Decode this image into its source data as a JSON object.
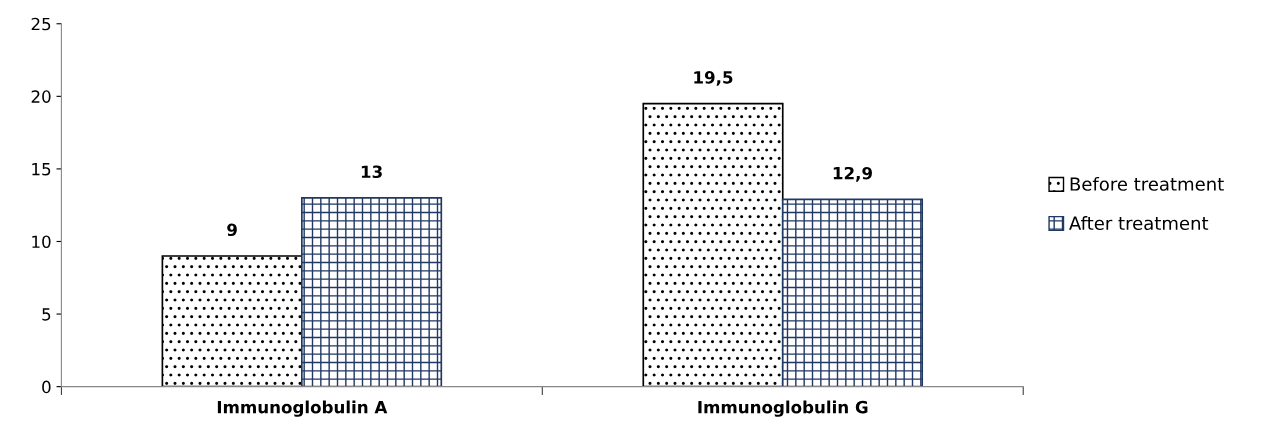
{
  "chart_data": {
    "type": "bar",
    "categories": [
      "Immunoglobulin A",
      "Immunoglobulin G"
    ],
    "series": [
      {
        "name": "Before treatment",
        "color": "#000000",
        "values": [
          9,
          19.5
        ],
        "value_labels": [
          "9",
          "19,5"
        ]
      },
      {
        "name": "After treatment",
        "color": "#203864",
        "values": [
          13,
          12.9
        ],
        "value_labels": [
          "13",
          "12,9"
        ]
      }
    ],
    "ylim": [
      0,
      25
    ],
    "yticks": [
      0,
      5,
      10,
      15,
      20,
      25
    ],
    "grid": false,
    "legend": "right"
  }
}
